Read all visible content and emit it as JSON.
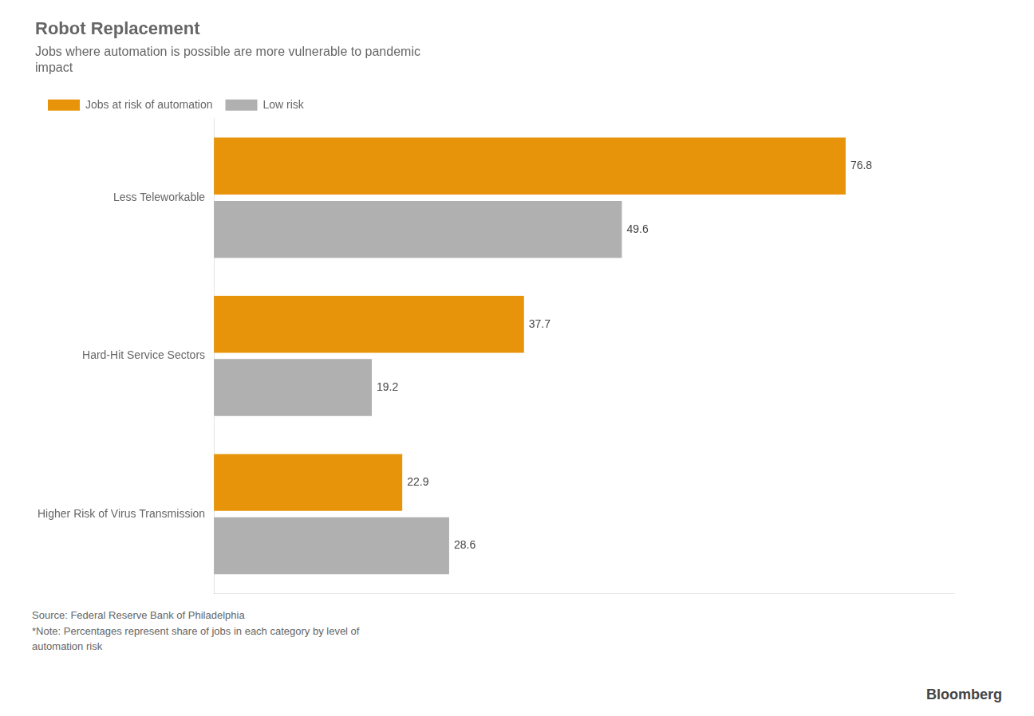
{
  "chart_data": {
    "type": "bar",
    "orientation": "horizontal",
    "title": "Robot Replacement",
    "subtitle": "Jobs where automation is possible are more vulnerable to pandemic\nimpact",
    "categories": [
      "Less Teleworkable",
      "Hard-Hit Service Sectors",
      "Higher Risk of Virus Transmission"
    ],
    "series": [
      {
        "name": "Jobs at risk of automation",
        "color": "#E8940A",
        "values": [
          76.8,
          37.7,
          22.9
        ]
      },
      {
        "name": "Low risk",
        "color": "#B0B0B0",
        "values": [
          49.6,
          19.2,
          28.6
        ]
      }
    ],
    "xlim": [
      0,
      90
    ],
    "tick_labels": "y",
    "grid": false,
    "legend": "top-left",
    "data_labels": true,
    "annotations": [
      "Source: Federal Reserve Bank of Philadelphia\n*Note: Percentages represent share of jobs in each category by level of\nautomation risk",
      "Bloomberg"
    ]
  }
}
